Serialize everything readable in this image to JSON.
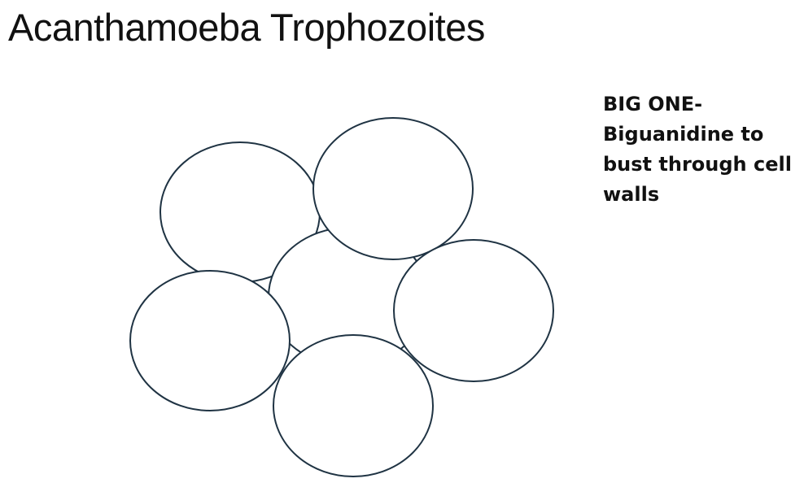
{
  "slide": {
    "title": "Acanthamoeba Trophozoites",
    "note": "BIG ONE- Biguanidine to bust through cell walls"
  },
  "colors": {
    "cell_outline": "#1f3343",
    "background": "#ffffff",
    "text": "#111111"
  }
}
